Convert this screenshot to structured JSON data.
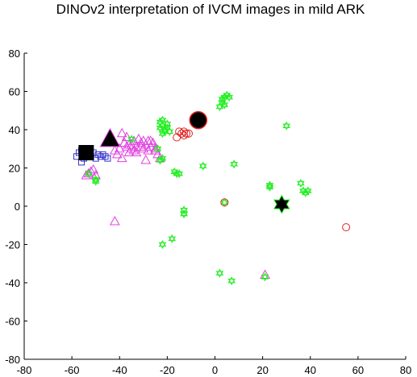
{
  "chart_data": {
    "type": "scatter",
    "title": "DINOv2 interpretation of IVCM images in mild ARK",
    "xlabel": "",
    "ylabel": "",
    "xlim": [
      -80,
      80
    ],
    "ylim": [
      -80,
      80
    ],
    "xticks": [
      -80,
      -60,
      -40,
      -20,
      0,
      20,
      40,
      60,
      80
    ],
    "yticks": [
      80,
      60,
      40,
      20,
      0,
      -20,
      -40,
      -60,
      -80
    ],
    "grid": false,
    "legend": "none",
    "series": [
      {
        "marker": "square",
        "color": "#3333cc",
        "points": [
          [
            -57,
            28
          ],
          [
            -58,
            26
          ],
          [
            -56,
            29
          ],
          [
            -55,
            25
          ],
          [
            -54,
            27
          ],
          [
            -52,
            26
          ],
          [
            -51,
            28
          ],
          [
            -50,
            25
          ],
          [
            -49,
            27
          ],
          [
            -48,
            26
          ],
          [
            -47,
            27
          ],
          [
            -46,
            26
          ],
          [
            -45,
            25
          ],
          [
            -56,
            23
          ]
        ]
      },
      {
        "marker": "triangle",
        "color": "#e040e0",
        "points": [
          [
            -39,
            38
          ],
          [
            -37,
            36
          ],
          [
            -38,
            33
          ],
          [
            -36,
            32
          ],
          [
            -35,
            30
          ],
          [
            -34,
            34
          ],
          [
            -33,
            31
          ],
          [
            -32,
            35
          ],
          [
            -31,
            33
          ],
          [
            -30,
            30
          ],
          [
            -29,
            32
          ],
          [
            -28,
            34
          ],
          [
            -27,
            31
          ],
          [
            -26,
            33
          ],
          [
            -25,
            29
          ],
          [
            -24,
            27
          ],
          [
            -23,
            25
          ],
          [
            -36,
            28
          ],
          [
            -40,
            30
          ],
          [
            -41,
            27
          ],
          [
            -39,
            25
          ],
          [
            -42,
            29
          ],
          [
            -37,
            31
          ],
          [
            -34,
            29
          ],
          [
            -30,
            34
          ],
          [
            -28,
            29
          ],
          [
            -33,
            28
          ],
          [
            -31,
            31
          ],
          [
            -29,
            24
          ],
          [
            -53,
            17
          ],
          [
            -54,
            16
          ],
          [
            -52,
            18
          ],
          [
            -50,
            16
          ],
          [
            -51,
            19
          ],
          [
            -42,
            -8
          ],
          [
            -38,
            33
          ],
          [
            -35,
            32
          ],
          [
            -27,
            34
          ],
          [
            -25,
            30
          ],
          [
            21,
            -36
          ]
        ]
      },
      {
        "marker": "hexagram",
        "color": "#22ee22",
        "points": [
          [
            -23,
            44
          ],
          [
            -22,
            42
          ],
          [
            -21,
            40
          ],
          [
            -20,
            41
          ],
          [
            -19,
            39
          ],
          [
            -22,
            38
          ],
          [
            -23,
            41
          ],
          [
            -20,
            43
          ],
          [
            -21,
            39
          ],
          [
            -22,
            45
          ],
          [
            -24,
            30
          ],
          [
            -22,
            25
          ],
          [
            -23,
            24
          ],
          [
            -17,
            18
          ],
          [
            -15,
            17
          ],
          [
            -16,
            17
          ],
          [
            -13,
            -2
          ],
          [
            -13,
            -4
          ],
          [
            -5,
            21
          ],
          [
            2,
            52
          ],
          [
            3,
            54
          ],
          [
            3,
            56
          ],
          [
            4,
            57
          ],
          [
            5,
            58
          ],
          [
            6,
            57
          ],
          [
            4,
            53
          ],
          [
            8,
            22
          ],
          [
            4,
            2
          ],
          [
            30,
            42
          ],
          [
            23,
            11
          ],
          [
            23,
            10
          ],
          [
            36,
            12
          ],
          [
            37,
            8
          ],
          [
            38,
            7
          ],
          [
            39,
            8
          ],
          [
            -13,
            -4
          ],
          [
            -18,
            -17
          ],
          [
            -22,
            -20
          ],
          [
            2,
            -35
          ],
          [
            7,
            -39
          ],
          [
            21,
            -37
          ],
          [
            -50,
            14
          ],
          [
            -50,
            13
          ],
          [
            -53,
            17
          ],
          [
            -35,
            35
          ]
        ]
      },
      {
        "marker": "circle",
        "color": "#e02020",
        "points": [
          [
            -14,
            38
          ],
          [
            -13,
            37
          ],
          [
            -15,
            39
          ],
          [
            -12,
            38
          ],
          [
            -16,
            36
          ],
          [
            -13,
            39
          ],
          [
            -11,
            38
          ],
          [
            4,
            2
          ],
          [
            55,
            -11
          ]
        ]
      },
      {
        "marker": "filled-square",
        "color": "#000000",
        "points": [
          [
            -54,
            28
          ]
        ]
      },
      {
        "marker": "filled-triangle",
        "color": "#000000",
        "points": [
          [
            -44,
            35
          ]
        ]
      },
      {
        "marker": "filled-circle",
        "color": "#000000",
        "edge_color": "#e02020",
        "points": [
          [
            -7,
            45
          ]
        ]
      },
      {
        "marker": "filled-hexagram",
        "color": "#000000",
        "edge_color": "#22ee22",
        "points": [
          [
            28,
            1
          ]
        ]
      }
    ]
  }
}
